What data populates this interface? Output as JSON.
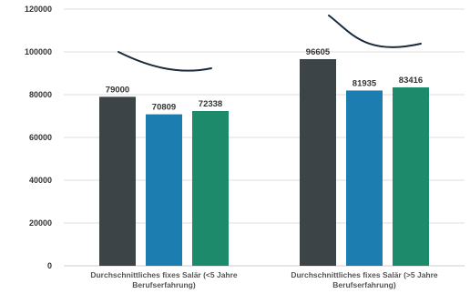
{
  "chart_data": {
    "type": "bar",
    "categories": [
      [
        "Durchschnittliches fixes Salär (<5 Jahre",
        "Berufserfahrung)"
      ],
      [
        "Durchschnittliches fixes Salär (>5 Jahre",
        "Berufserfahrung)"
      ]
    ],
    "series": [
      {
        "values": [
          79000,
          96605
        ],
        "color": "#3d4447"
      },
      {
        "values": [
          70809,
          81935
        ],
        "color": "#1b7db0"
      },
      {
        "values": [
          72338,
          83416
        ],
        "color": "#1d8a6b"
      }
    ],
    "data_labels": [
      [
        "79000",
        "96605"
      ],
      [
        "70809",
        "81935"
      ],
      [
        "72338",
        "83416"
      ]
    ],
    "yticks": [
      "0",
      "20000",
      "40000",
      "60000",
      "80000",
      "100000",
      "120000"
    ],
    "ylim": [
      0,
      120000
    ],
    "title": "",
    "xlabel": "",
    "ylabel": "",
    "grid": true,
    "legend": "none",
    "gridline_color": "#dddddd",
    "annotation_color": "#1a2b3c"
  }
}
